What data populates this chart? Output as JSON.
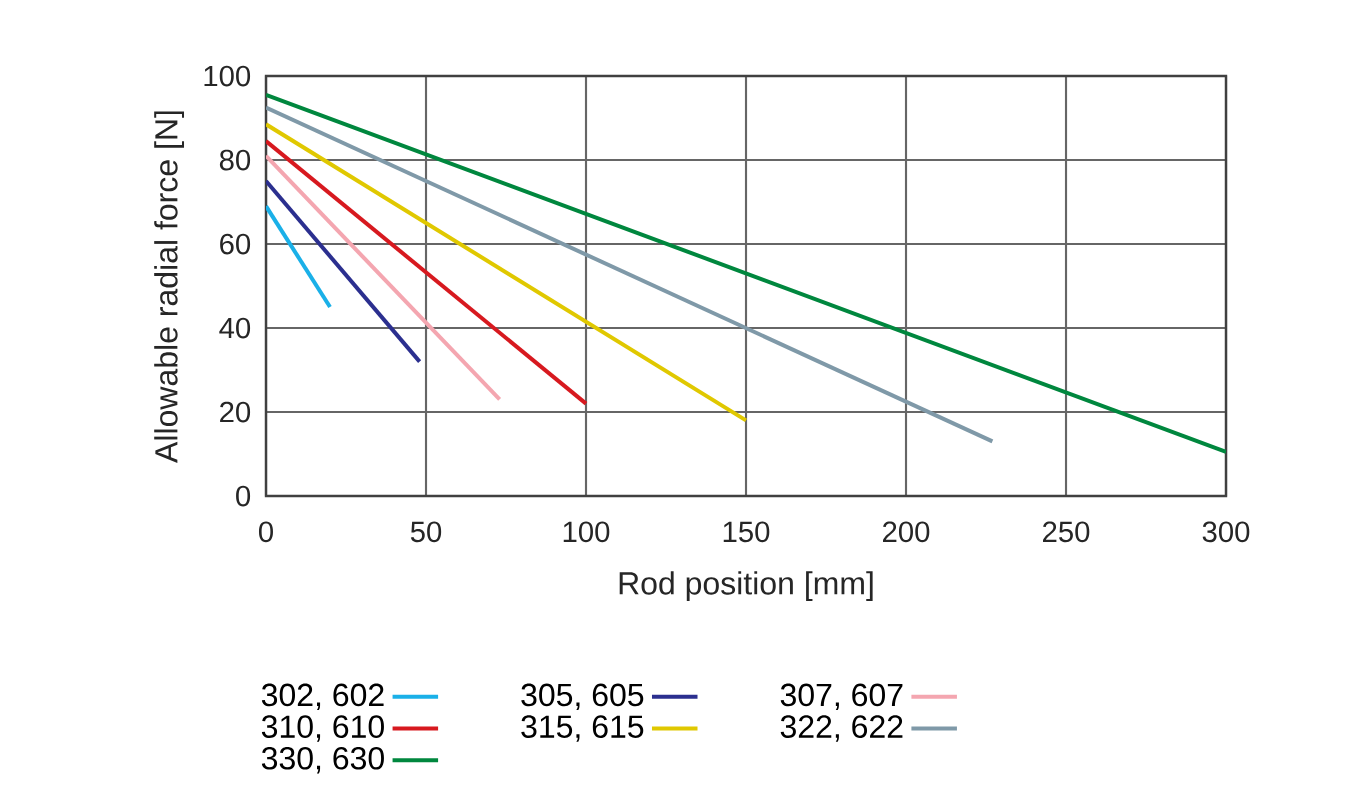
{
  "chart_data": {
    "type": "line",
    "xlabel": "Rod position [mm]",
    "ylabel": "Allowable radial force [N]",
    "xlim": [
      0,
      300
    ],
    "ylim": [
      0,
      100
    ],
    "xticks": [
      0,
      50,
      100,
      150,
      200,
      250,
      300
    ],
    "yticks": [
      0,
      20,
      40,
      60,
      80,
      100
    ],
    "grid": true,
    "legend": "bottom",
    "marker": "none",
    "line_style": "solid",
    "series": [
      {
        "name": "302, 602",
        "color": "#1ab0e8",
        "x": [
          0,
          20
        ],
        "values": [
          69,
          45
        ]
      },
      {
        "name": "305, 605",
        "color": "#2b2f8f",
        "x": [
          0,
          48
        ],
        "values": [
          75,
          32
        ]
      },
      {
        "name": "307, 607",
        "color": "#f4a6b0",
        "x": [
          0,
          73
        ],
        "values": [
          81,
          23
        ]
      },
      {
        "name": "310, 610",
        "color": "#d7191f",
        "x": [
          0,
          100
        ],
        "values": [
          84.5,
          22
        ]
      },
      {
        "name": "315, 615",
        "color": "#e0c800",
        "x": [
          0,
          150
        ],
        "values": [
          88.5,
          18
        ]
      },
      {
        "name": "322, 622",
        "color": "#7f99a8",
        "x": [
          0,
          227
        ],
        "values": [
          92.5,
          13
        ]
      },
      {
        "name": "330, 630",
        "color": "#00873e",
        "x": [
          0,
          300
        ],
        "values": [
          95.5,
          10.5
        ]
      }
    ]
  }
}
